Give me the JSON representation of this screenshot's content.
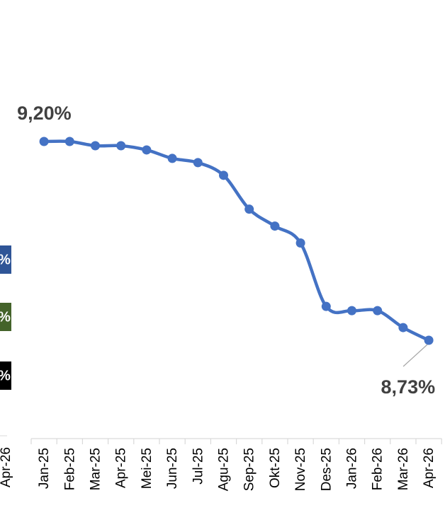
{
  "chart_data": {
    "type": "line",
    "categories": [
      "Jan-25",
      "Feb-25",
      "Mar-25",
      "Apr-25",
      "Mei-25",
      "Jun-25",
      "Jul-25",
      "Agu-25",
      "Sep-25",
      "Okt-25",
      "Nov-25",
      "Des-25",
      "Jan-26",
      "Feb-26",
      "Mar-26",
      "Apr-26"
    ],
    "series": [
      {
        "color": "#4472c4",
        "values": [
          9.2,
          9.2,
          9.19,
          9.19,
          9.18,
          9.16,
          9.15,
          9.12,
          9.04,
          9.0,
          8.96,
          8.81,
          8.8,
          8.8,
          8.76,
          8.73
        ],
        "value_labels": [
          "9,20%",
          null,
          null,
          null,
          null,
          null,
          null,
          null,
          null,
          null,
          null,
          null,
          null,
          null,
          null,
          "8,73%"
        ]
      }
    ],
    "side_badges": [
      {
        "label": "%",
        "color": "#2f5597"
      },
      {
        "label": "%",
        "color": "#44632a"
      },
      {
        "label": "%",
        "color": "#000000"
      }
    ],
    "left_fragment_label": "Apr-26"
  }
}
